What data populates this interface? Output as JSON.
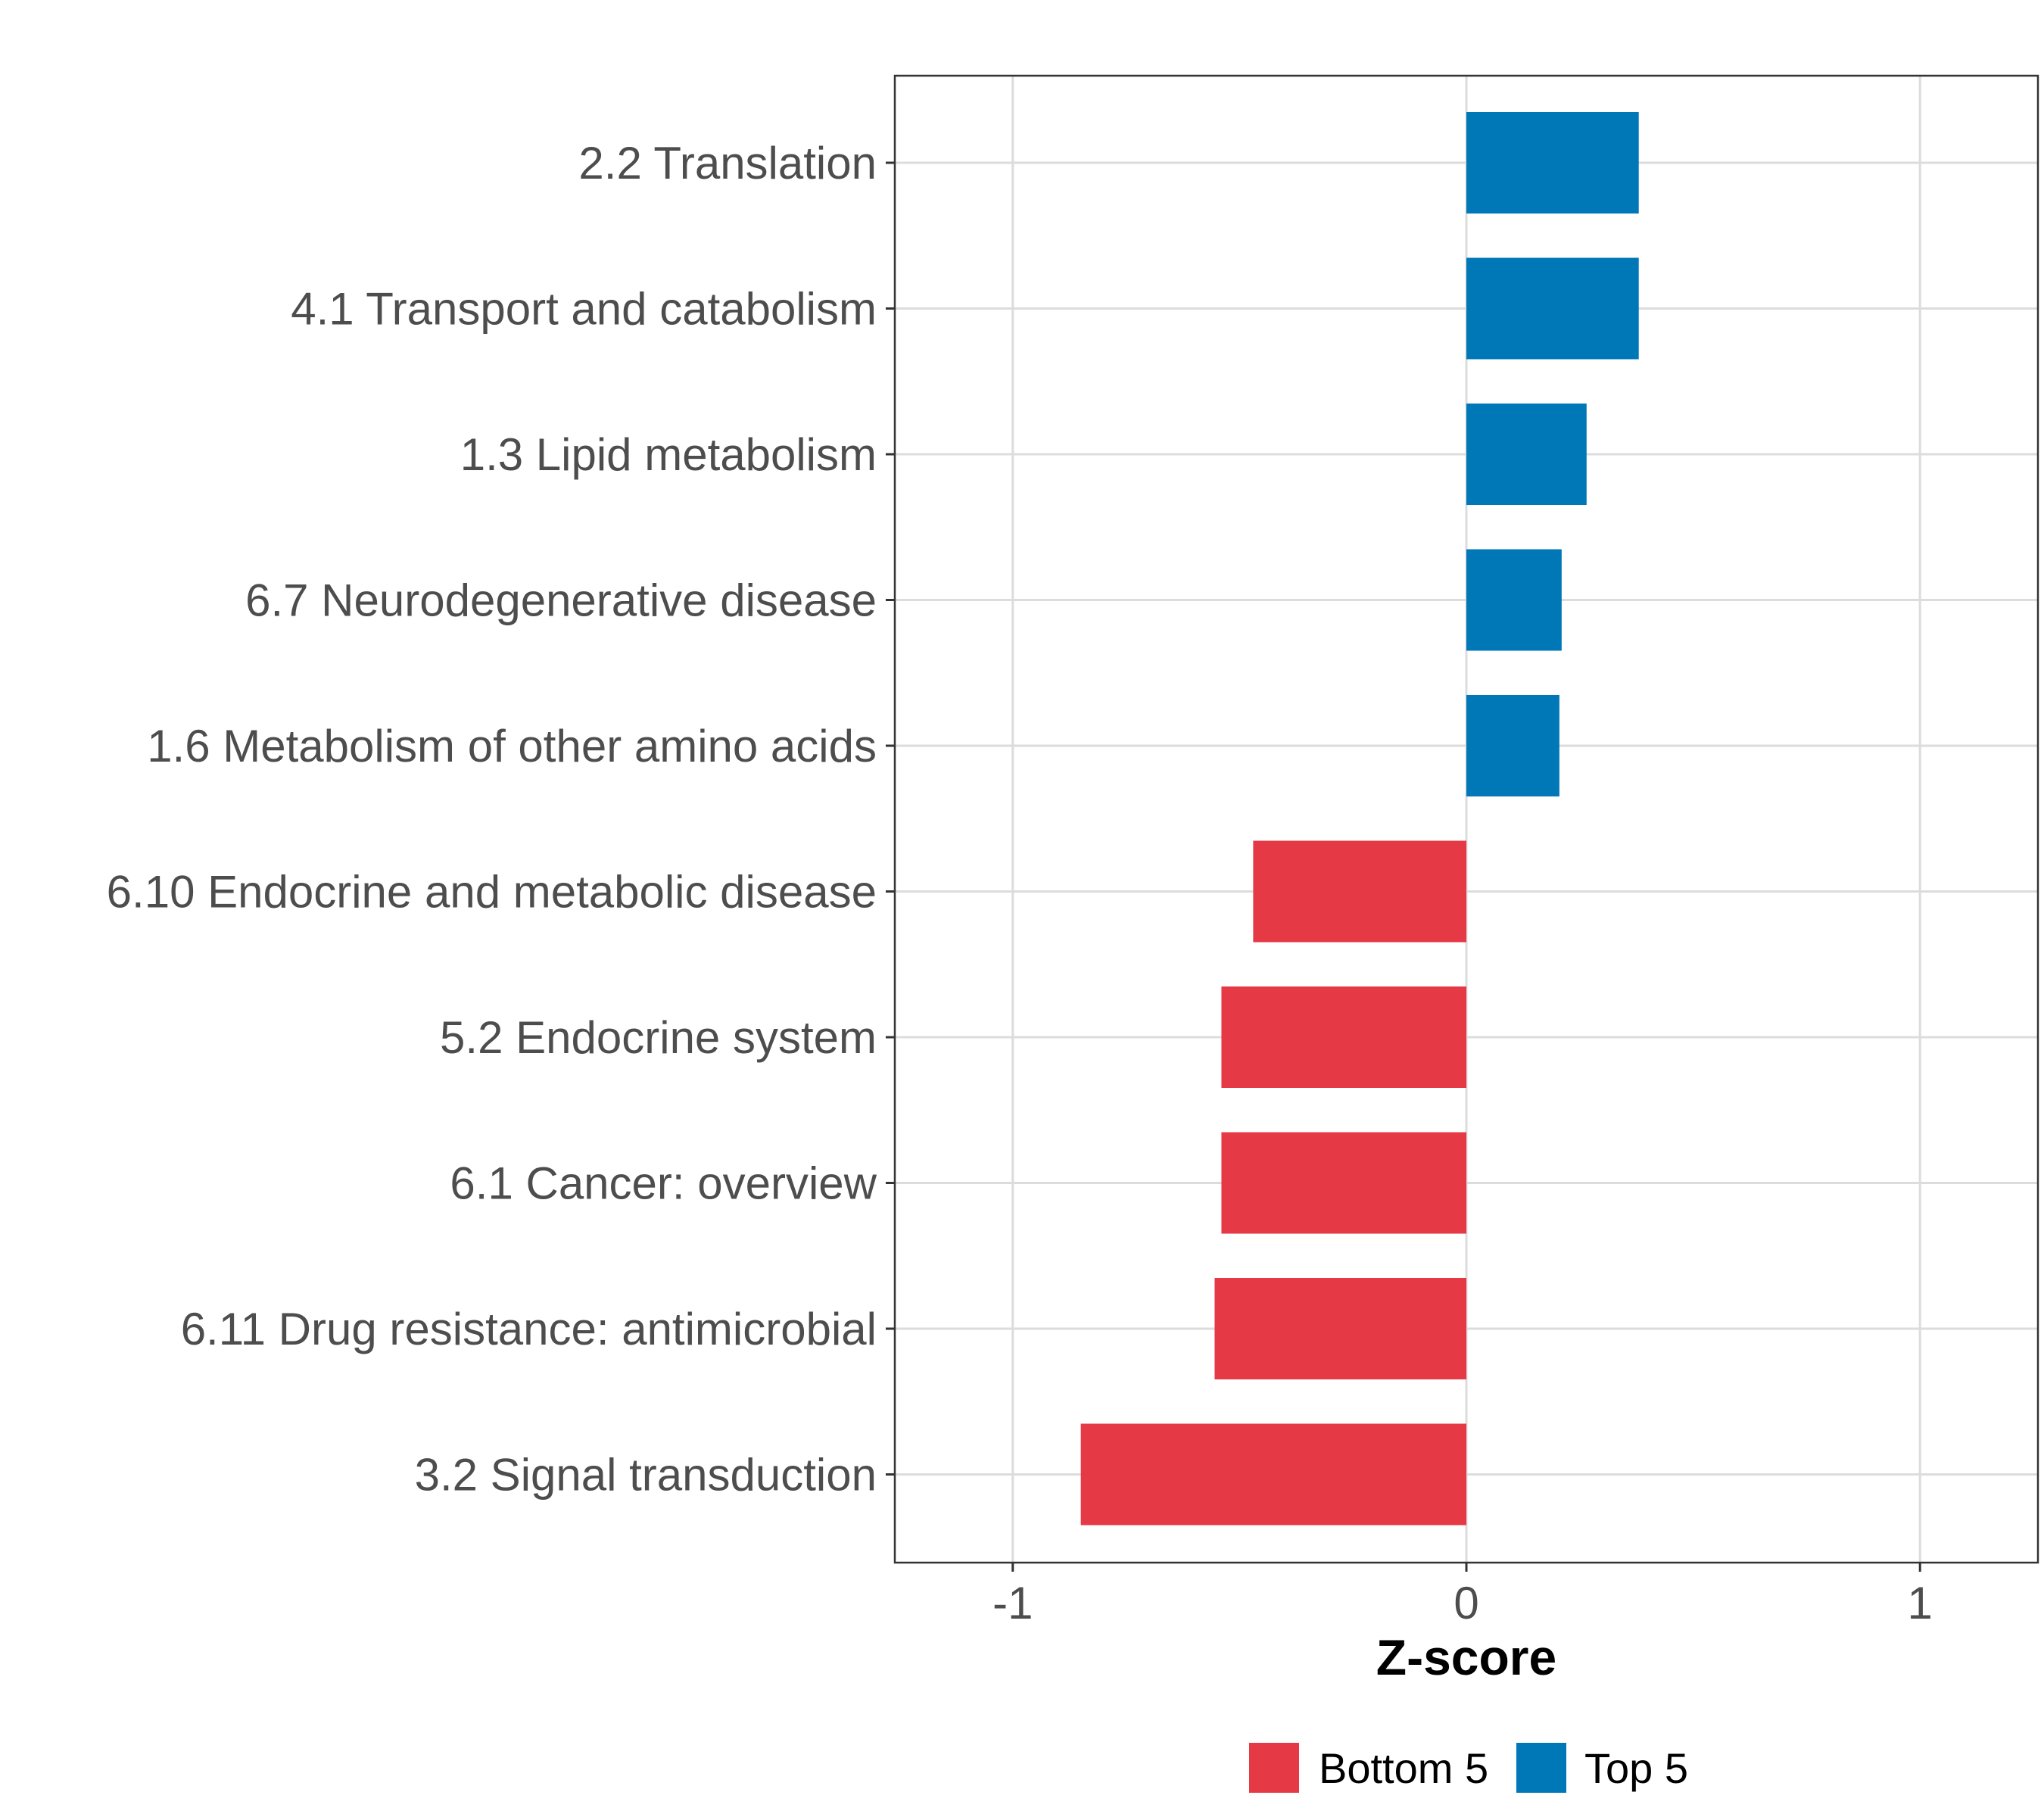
{
  "chart_data": {
    "type": "bar",
    "orientation": "horizontal",
    "title": "",
    "xlabel": "Z-score",
    "ylabel": "",
    "xlim": [
      -1.26,
      1.26
    ],
    "x_ticks": [
      -1,
      0,
      1
    ],
    "x_tick_labels": [
      "-1",
      "0",
      "1"
    ],
    "grid": true,
    "legend_position": "bottom",
    "categories": [
      "2.2 Translation",
      "4.1 Transport and catabolism",
      "1.3 Lipid metabolism",
      "6.7 Neurodegenerative disease",
      "1.6 Metabolism of other amino acids",
      "6.10 Endocrine and metabolic disease",
      "5.2 Endocrine system",
      "6.1 Cancer: overview",
      "6.11 Drug resistance: antimicrobial",
      "3.2 Signal transduction"
    ],
    "values": [
      0.38,
      0.38,
      0.265,
      0.21,
      0.205,
      -0.47,
      -0.54,
      -0.54,
      -0.555,
      -0.85
    ],
    "groups": [
      "Top 5",
      "Top 5",
      "Top 5",
      "Top 5",
      "Top 5",
      "Bottom 5",
      "Bottom 5",
      "Bottom 5",
      "Bottom 5",
      "Bottom 5"
    ],
    "legend": [
      {
        "label": "Bottom 5",
        "color": "#e63946"
      },
      {
        "label": "Top 5",
        "color": "#0077b6"
      }
    ]
  }
}
